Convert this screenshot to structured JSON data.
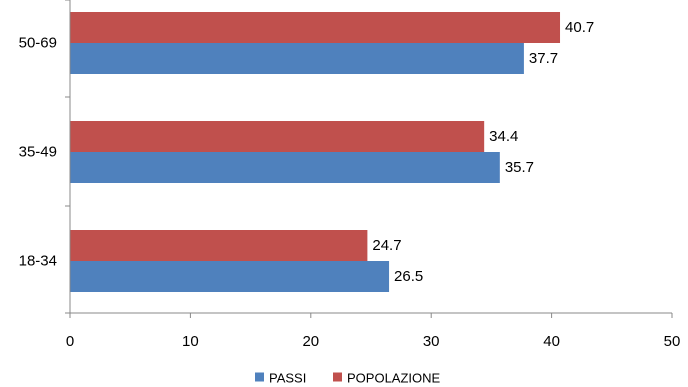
{
  "chart_data": {
    "type": "bar",
    "orientation": "horizontal",
    "categories": [
      "18-34",
      "35-49",
      "50-69"
    ],
    "series": [
      {
        "name": "PASSI",
        "values": [
          26.5,
          35.7,
          37.7
        ],
        "color": "#4F81BD"
      },
      {
        "name": "POPOLAZIONE",
        "values": [
          24.7,
          34.4,
          40.7
        ],
        "color": "#C0504D"
      }
    ],
    "xlim": [
      0,
      50
    ],
    "x_ticks": [
      0,
      10,
      20,
      30,
      40,
      50
    ],
    "grid": false,
    "legend": "bottom-center"
  }
}
